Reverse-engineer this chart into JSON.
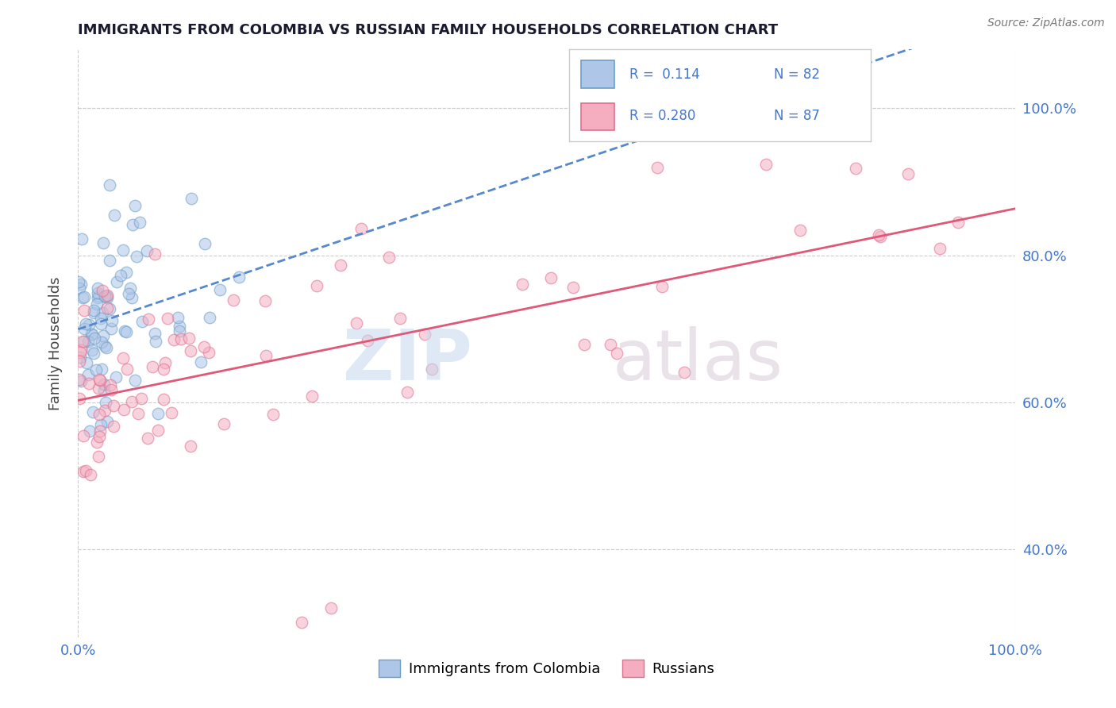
{
  "title": "IMMIGRANTS FROM COLOMBIA VS RUSSIAN FAMILY HOUSEHOLDS CORRELATION CHART",
  "source": "Source: ZipAtlas.com",
  "ylabel": "Family Households",
  "colombia_color": "#aec6e8",
  "colombia_edge": "#6b9fc8",
  "russia_color": "#f4aec0",
  "russia_edge": "#e07090",
  "trend_colombia_color": "#5588cc",
  "trend_russia_color": "#e05878",
  "legend_text_color": "#4477cc",
  "tick_color": "#4477cc",
  "grid_color": "#cccccc",
  "R_colombia": 0.114,
  "N_colombia": 82,
  "R_russia": 0.28,
  "N_russia": 87,
  "xlim": [
    0.0,
    100.0
  ],
  "ylim": [
    28.0,
    108.0
  ],
  "y_ticks": [
    40,
    60,
    80,
    100
  ],
  "x_ticks": [
    0,
    100
  ],
  "watermark_zip": "ZIP",
  "watermark_atlas": "atlas"
}
